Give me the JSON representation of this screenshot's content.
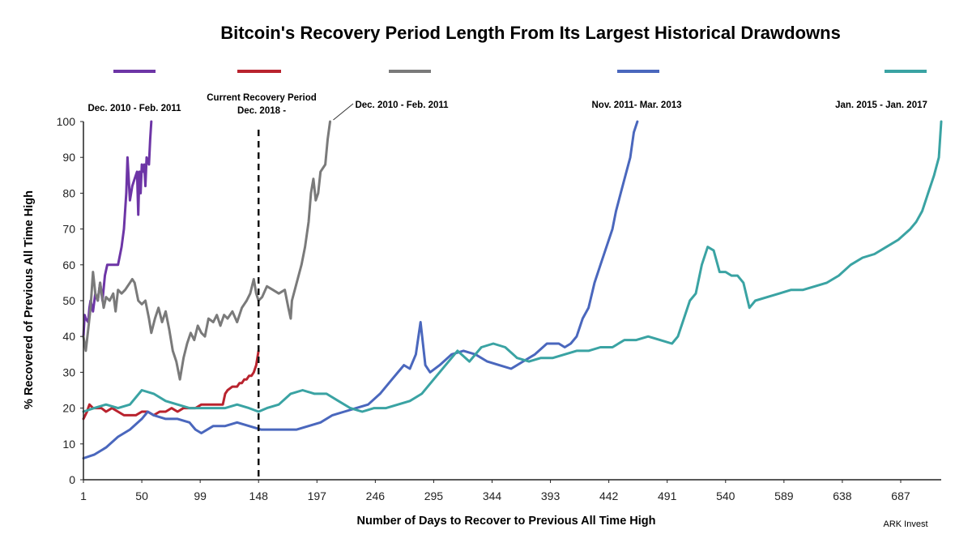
{
  "chart_data": {
    "type": "line",
    "title": "Bitcoin's Recovery Period Length From Its Largest Historical Drawdowns",
    "xlabel": "Number of Days to Recover to Previous All Time High",
    "ylabel": "% Recovered of Previous All Time High",
    "source": "ARK Invest",
    "xlim": [
      1,
      721
    ],
    "ylim": [
      0,
      100
    ],
    "xticks": [
      1,
      50,
      99,
      148,
      197,
      246,
      295,
      344,
      393,
      442,
      491,
      540,
      589,
      638,
      687
    ],
    "yticks": [
      0,
      10,
      20,
      30,
      40,
      50,
      60,
      70,
      80,
      90,
      100
    ],
    "grid": false,
    "legend_position": "top",
    "annotation": {
      "label_lines": [
        "Current Recovery Period",
        "Dec. 2018 -"
      ],
      "x": 148,
      "style": "dashed vertical line"
    },
    "series": [
      {
        "name": "Dec. 2010 - Feb. 2011",
        "color": "#6d35a6",
        "points": [
          [
            1,
            40
          ],
          [
            2,
            46
          ],
          [
            3,
            45
          ],
          [
            5,
            44
          ],
          [
            6,
            48
          ],
          [
            7,
            50
          ],
          [
            9,
            47
          ],
          [
            11,
            52
          ],
          [
            13,
            50
          ],
          [
            15,
            55
          ],
          [
            17,
            50
          ],
          [
            19,
            57
          ],
          [
            21,
            60
          ],
          [
            24,
            60
          ],
          [
            27,
            60
          ],
          [
            30,
            60
          ],
          [
            33,
            65
          ],
          [
            35,
            70
          ],
          [
            37,
            80
          ],
          [
            38,
            90
          ],
          [
            40,
            78
          ],
          [
            42,
            82
          ],
          [
            44,
            84
          ],
          [
            46,
            86
          ],
          [
            47,
            74
          ],
          [
            48,
            86
          ],
          [
            49,
            80
          ],
          [
            50,
            88
          ],
          [
            51,
            86
          ],
          [
            52,
            88
          ],
          [
            53,
            82
          ],
          [
            54,
            90
          ],
          [
            56,
            88
          ],
          [
            57,
            95
          ],
          [
            58,
            100
          ]
        ]
      },
      {
        "name": "Current Recovery Period Dec. 2018 -",
        "color": "#b9232e",
        "points": [
          [
            1,
            17
          ],
          [
            4,
            19
          ],
          [
            6,
            21
          ],
          [
            9,
            20
          ],
          [
            12,
            20
          ],
          [
            16,
            20
          ],
          [
            20,
            19
          ],
          [
            25,
            20
          ],
          [
            30,
            19
          ],
          [
            35,
            18
          ],
          [
            40,
            18
          ],
          [
            45,
            18
          ],
          [
            50,
            19
          ],
          [
            55,
            19
          ],
          [
            60,
            18
          ],
          [
            65,
            19
          ],
          [
            70,
            19
          ],
          [
            75,
            20
          ],
          [
            80,
            19
          ],
          [
            85,
            20
          ],
          [
            90,
            20
          ],
          [
            95,
            20
          ],
          [
            100,
            21
          ],
          [
            105,
            21
          ],
          [
            110,
            21
          ],
          [
            115,
            21
          ],
          [
            118,
            21
          ],
          [
            120,
            24
          ],
          [
            122,
            25
          ],
          [
            126,
            26
          ],
          [
            128,
            26
          ],
          [
            130,
            26
          ],
          [
            132,
            27
          ],
          [
            134,
            27
          ],
          [
            136,
            28
          ],
          [
            138,
            28
          ],
          [
            140,
            29
          ],
          [
            142,
            29
          ],
          [
            144,
            30
          ],
          [
            146,
            32
          ],
          [
            148,
            36
          ]
        ]
      },
      {
        "name": "Dec. 2010 - Feb. 2011",
        "color": "#7a7a7a",
        "points": [
          [
            1,
            40
          ],
          [
            3,
            36
          ],
          [
            5,
            42
          ],
          [
            7,
            48
          ],
          [
            9,
            58
          ],
          [
            11,
            52
          ],
          [
            13,
            50
          ],
          [
            15,
            55
          ],
          [
            18,
            48
          ],
          [
            20,
            51
          ],
          [
            23,
            50
          ],
          [
            26,
            52
          ],
          [
            28,
            47
          ],
          [
            30,
            53
          ],
          [
            33,
            52
          ],
          [
            36,
            53
          ],
          [
            40,
            55
          ],
          [
            42,
            56
          ],
          [
            44,
            55
          ],
          [
            47,
            50
          ],
          [
            50,
            49
          ],
          [
            53,
            50
          ],
          [
            56,
            45
          ],
          [
            58,
            41
          ],
          [
            61,
            45
          ],
          [
            64,
            48
          ],
          [
            67,
            44
          ],
          [
            70,
            47
          ],
          [
            73,
            42
          ],
          [
            76,
            36
          ],
          [
            79,
            33
          ],
          [
            82,
            28
          ],
          [
            85,
            34
          ],
          [
            88,
            38
          ],
          [
            91,
            41
          ],
          [
            94,
            39
          ],
          [
            97,
            43
          ],
          [
            100,
            41
          ],
          [
            103,
            40
          ],
          [
            106,
            45
          ],
          [
            110,
            44
          ],
          [
            113,
            46
          ],
          [
            116,
            43
          ],
          [
            119,
            46
          ],
          [
            122,
            45
          ],
          [
            126,
            47
          ],
          [
            130,
            44
          ],
          [
            134,
            48
          ],
          [
            138,
            50
          ],
          [
            141,
            52
          ],
          [
            144,
            56
          ],
          [
            146,
            52
          ],
          [
            148,
            50
          ],
          [
            151,
            51
          ],
          [
            155,
            54
          ],
          [
            160,
            53
          ],
          [
            165,
            52
          ],
          [
            170,
            53
          ],
          [
            173,
            48
          ],
          [
            175,
            45
          ],
          [
            176,
            50
          ],
          [
            180,
            55
          ],
          [
            184,
            60
          ],
          [
            187,
            65
          ],
          [
            190,
            72
          ],
          [
            192,
            80
          ],
          [
            194,
            84
          ],
          [
            196,
            78
          ],
          [
            198,
            80
          ],
          [
            200,
            86
          ],
          [
            204,
            88
          ],
          [
            206,
            95
          ],
          [
            208,
            100
          ]
        ]
      },
      {
        "name": "Nov. 2011- Mar. 2013",
        "color": "#4a67bd",
        "points": [
          [
            1,
            6
          ],
          [
            10,
            7
          ],
          [
            20,
            9
          ],
          [
            30,
            12
          ],
          [
            40,
            14
          ],
          [
            50,
            17
          ],
          [
            55,
            19
          ],
          [
            60,
            18
          ],
          [
            70,
            17
          ],
          [
            80,
            17
          ],
          [
            90,
            16
          ],
          [
            95,
            14
          ],
          [
            100,
            13
          ],
          [
            110,
            15
          ],
          [
            120,
            15
          ],
          [
            130,
            16
          ],
          [
            140,
            15
          ],
          [
            150,
            14
          ],
          [
            160,
            14
          ],
          [
            170,
            14
          ],
          [
            180,
            14
          ],
          [
            190,
            15
          ],
          [
            200,
            16
          ],
          [
            210,
            18
          ],
          [
            220,
            19
          ],
          [
            230,
            20
          ],
          [
            240,
            21
          ],
          [
            250,
            24
          ],
          [
            260,
            28
          ],
          [
            265,
            30
          ],
          [
            270,
            32
          ],
          [
            275,
            31
          ],
          [
            280,
            35
          ],
          [
            284,
            44
          ],
          [
            288,
            32
          ],
          [
            292,
            30
          ],
          [
            300,
            32
          ],
          [
            310,
            35
          ],
          [
            320,
            36
          ],
          [
            330,
            35
          ],
          [
            340,
            33
          ],
          [
            350,
            32
          ],
          [
            360,
            31
          ],
          [
            370,
            33
          ],
          [
            380,
            35
          ],
          [
            390,
            38
          ],
          [
            400,
            38
          ],
          [
            405,
            37
          ],
          [
            410,
            38
          ],
          [
            415,
            40
          ],
          [
            420,
            45
          ],
          [
            425,
            48
          ],
          [
            430,
            55
          ],
          [
            435,
            60
          ],
          [
            440,
            65
          ],
          [
            445,
            70
          ],
          [
            448,
            75
          ],
          [
            452,
            80
          ],
          [
            456,
            85
          ],
          [
            460,
            90
          ],
          [
            463,
            97
          ],
          [
            466,
            100
          ]
        ]
      },
      {
        "name": "Jan. 2015 - Jan. 2017",
        "color": "#3aa3a3",
        "points": [
          [
            1,
            19
          ],
          [
            10,
            20
          ],
          [
            20,
            21
          ],
          [
            30,
            20
          ],
          [
            40,
            21
          ],
          [
            50,
            25
          ],
          [
            60,
            24
          ],
          [
            70,
            22
          ],
          [
            80,
            21
          ],
          [
            90,
            20
          ],
          [
            100,
            20
          ],
          [
            110,
            20
          ],
          [
            120,
            20
          ],
          [
            130,
            21
          ],
          [
            140,
            20
          ],
          [
            148,
            19
          ],
          [
            155,
            20
          ],
          [
            165,
            21
          ],
          [
            175,
            24
          ],
          [
            185,
            25
          ],
          [
            195,
            24
          ],
          [
            205,
            24
          ],
          [
            215,
            22
          ],
          [
            225,
            20
          ],
          [
            235,
            19
          ],
          [
            245,
            20
          ],
          [
            255,
            20
          ],
          [
            265,
            21
          ],
          [
            275,
            22
          ],
          [
            285,
            24
          ],
          [
            295,
            28
          ],
          [
            305,
            32
          ],
          [
            315,
            36
          ],
          [
            325,
            33
          ],
          [
            335,
            37
          ],
          [
            345,
            38
          ],
          [
            355,
            37
          ],
          [
            365,
            34
          ],
          [
            375,
            33
          ],
          [
            385,
            34
          ],
          [
            395,
            34
          ],
          [
            405,
            35
          ],
          [
            415,
            36
          ],
          [
            425,
            36
          ],
          [
            435,
            37
          ],
          [
            445,
            37
          ],
          [
            455,
            39
          ],
          [
            465,
            39
          ],
          [
            475,
            40
          ],
          [
            485,
            39
          ],
          [
            495,
            38
          ],
          [
            500,
            40
          ],
          [
            505,
            45
          ],
          [
            510,
            50
          ],
          [
            515,
            52
          ],
          [
            520,
            60
          ],
          [
            525,
            65
          ],
          [
            530,
            64
          ],
          [
            535,
            58
          ],
          [
            540,
            58
          ],
          [
            545,
            57
          ],
          [
            550,
            57
          ],
          [
            555,
            55
          ],
          [
            560,
            48
          ],
          [
            565,
            50
          ],
          [
            575,
            51
          ],
          [
            585,
            52
          ],
          [
            595,
            53
          ],
          [
            605,
            53
          ],
          [
            615,
            54
          ],
          [
            625,
            55
          ],
          [
            635,
            57
          ],
          [
            645,
            60
          ],
          [
            655,
            62
          ],
          [
            665,
            63
          ],
          [
            675,
            65
          ],
          [
            685,
            67
          ],
          [
            695,
            70
          ],
          [
            700,
            72
          ],
          [
            705,
            75
          ],
          [
            710,
            80
          ],
          [
            715,
            85
          ],
          [
            719,
            90
          ],
          [
            721,
            100
          ]
        ]
      }
    ]
  }
}
